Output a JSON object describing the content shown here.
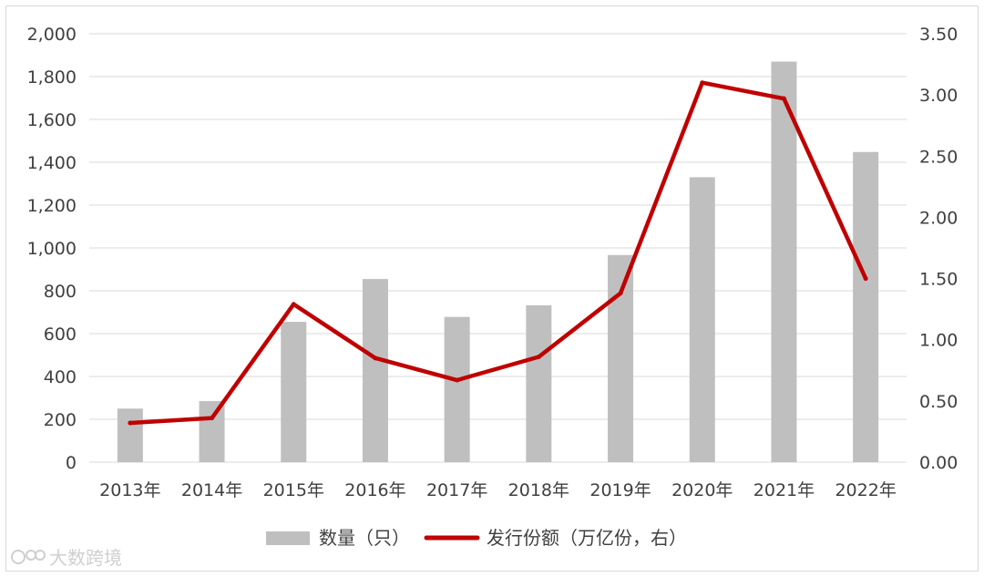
{
  "chart_data": {
    "type": "bar",
    "categories": [
      "2013年",
      "2014年",
      "2015年",
      "2016年",
      "2017年",
      "2018年",
      "2019年",
      "2020年",
      "2021年",
      "2022年"
    ],
    "series": [
      {
        "name": "数量（只）",
        "type": "bar",
        "axis": "left",
        "color": "#bfbfbf",
        "values": [
          250,
          285,
          655,
          855,
          678,
          732,
          967,
          1330,
          1870,
          1448
        ]
      },
      {
        "name": "发行份额（万亿份，右）",
        "type": "line",
        "axis": "right",
        "color": "#c00000",
        "values": [
          0.32,
          0.36,
          1.29,
          0.85,
          0.67,
          0.86,
          1.38,
          3.1,
          2.97,
          1.5
        ]
      }
    ],
    "y_left": {
      "min": 0,
      "max": 2000,
      "step": 200,
      "tick_labels": [
        "0",
        "200",
        "400",
        "600",
        "800",
        "1,000",
        "1,200",
        "1,400",
        "1,600",
        "1,800",
        "2,000"
      ]
    },
    "y_right": {
      "min": 0,
      "max": 3.5,
      "step": 0.5,
      "tick_labels": [
        "0.00",
        "0.50",
        "1.00",
        "1.50",
        "2.00",
        "2.50",
        "3.00",
        "3.50"
      ]
    },
    "grid": true,
    "legend": "bottom-center"
  },
  "watermark": {
    "text": "大数跨境"
  }
}
